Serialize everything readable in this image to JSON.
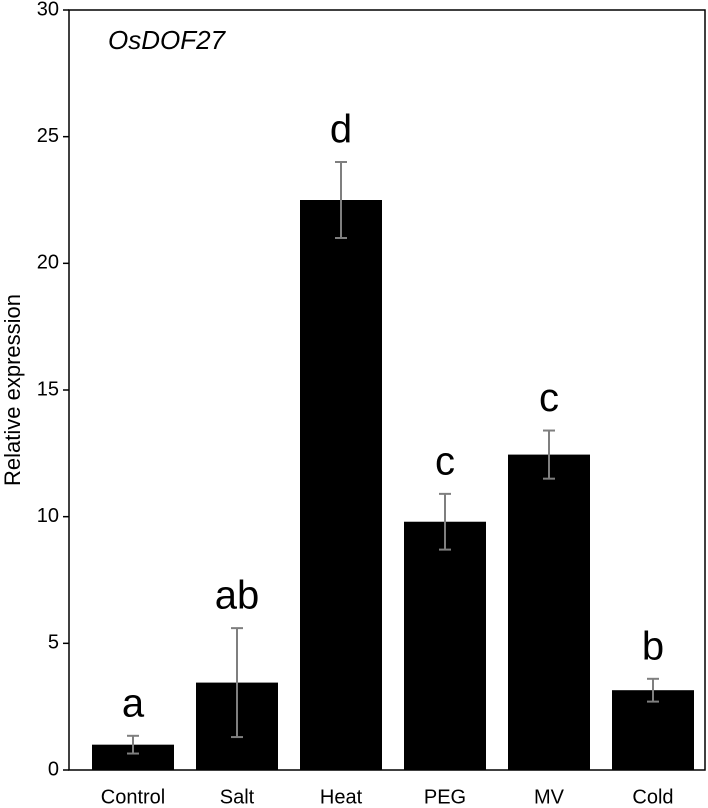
{
  "chart_data": {
    "type": "bar",
    "annotation": "OsDOF27",
    "y_label": "Relative expression",
    "categories": [
      "Control",
      "Salt",
      "Heat",
      "PEG",
      "MV",
      "Cold"
    ],
    "values": [
      1.0,
      3.45,
      22.5,
      9.8,
      12.45,
      3.15
    ],
    "errors": [
      0.35,
      2.15,
      1.5,
      1.1,
      0.95,
      0.45
    ],
    "letters": [
      "a",
      "ab",
      "d",
      "c",
      "c",
      "b"
    ],
    "color": "#000000",
    "error_color": "#7f7f7f",
    "ylim": [
      0,
      30
    ],
    "yticks": [
      0,
      5,
      10,
      15,
      20,
      25,
      30
    ],
    "grid": false
  }
}
